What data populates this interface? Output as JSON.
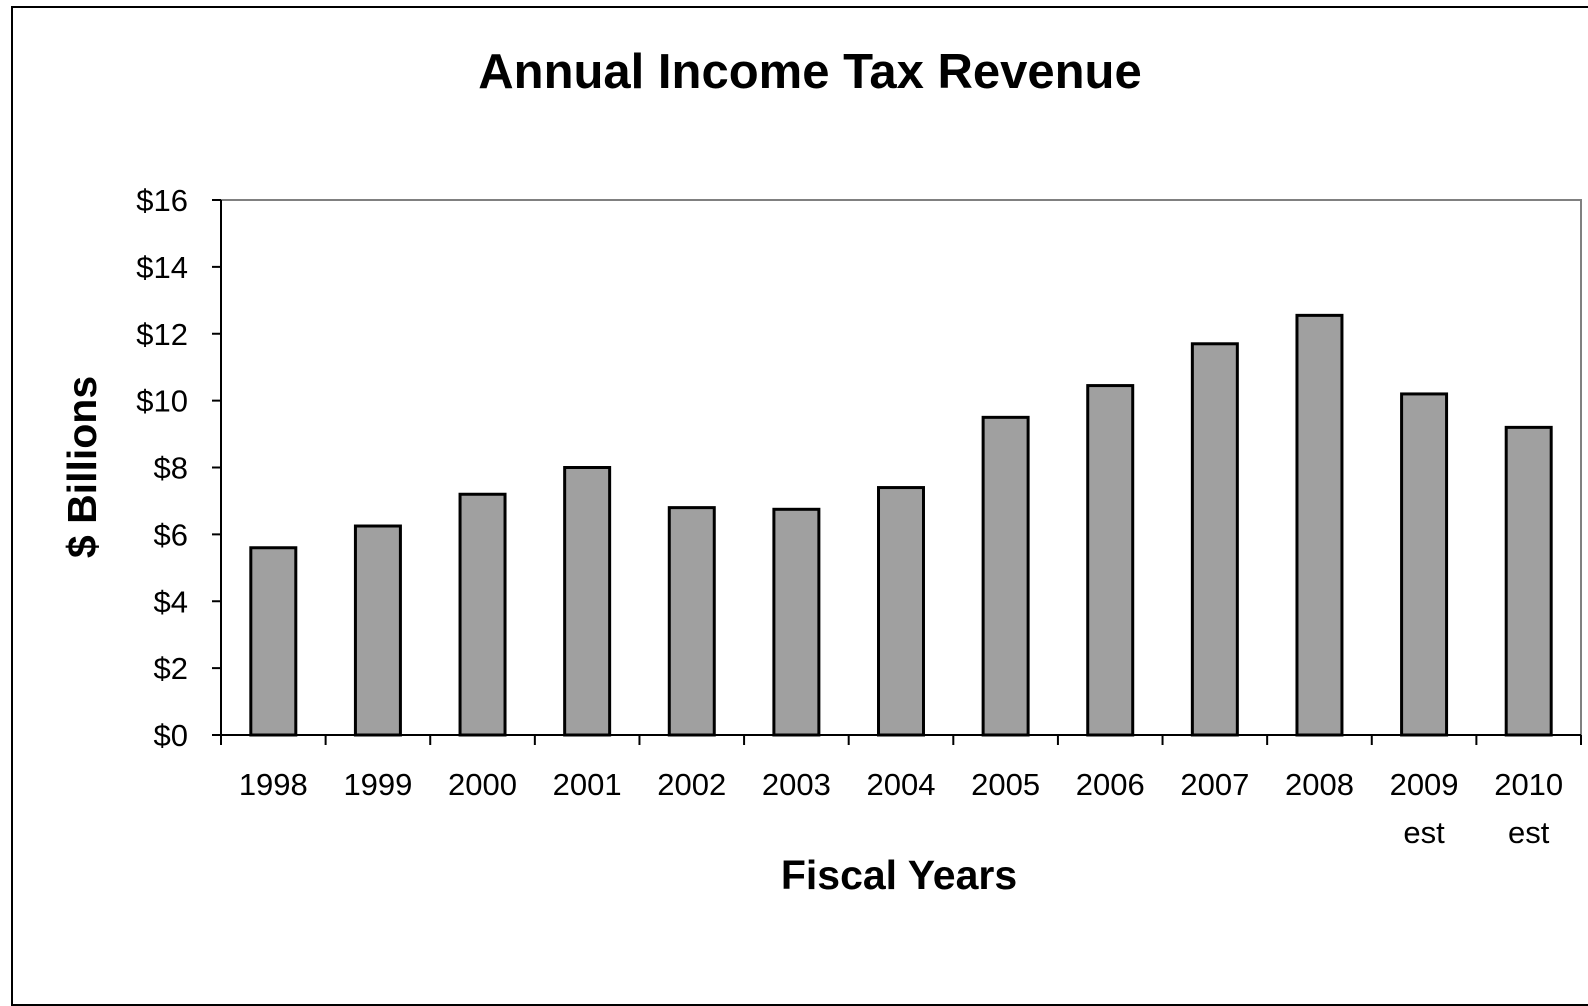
{
  "chart_data": {
    "type": "bar",
    "title": "Annual Income Tax Revenue",
    "xlabel": "Fiscal Years",
    "ylabel": "$ Billions",
    "categories": [
      [
        "1998"
      ],
      [
        "1999"
      ],
      [
        "2000"
      ],
      [
        "2001"
      ],
      [
        "2002"
      ],
      [
        "2003"
      ],
      [
        "2004"
      ],
      [
        "2005"
      ],
      [
        "2006"
      ],
      [
        "2007"
      ],
      [
        "2008"
      ],
      [
        "2009",
        "est"
      ],
      [
        "2010",
        "est"
      ]
    ],
    "values": [
      5.6,
      6.25,
      7.2,
      8.0,
      6.8,
      6.75,
      7.4,
      9.5,
      10.45,
      11.7,
      12.55,
      10.2,
      9.2
    ],
    "ylim": [
      0,
      16
    ],
    "yticks": [
      0,
      2,
      4,
      6,
      8,
      10,
      12,
      14,
      16
    ],
    "ytick_labels": [
      "$0",
      "$2",
      "$4",
      "$6",
      "$8",
      "$10",
      "$12",
      "$14",
      "$16"
    ],
    "grid": false,
    "legend": "none",
    "bar_color": "#a0a0a0",
    "bar_edge_color": "#000000"
  }
}
